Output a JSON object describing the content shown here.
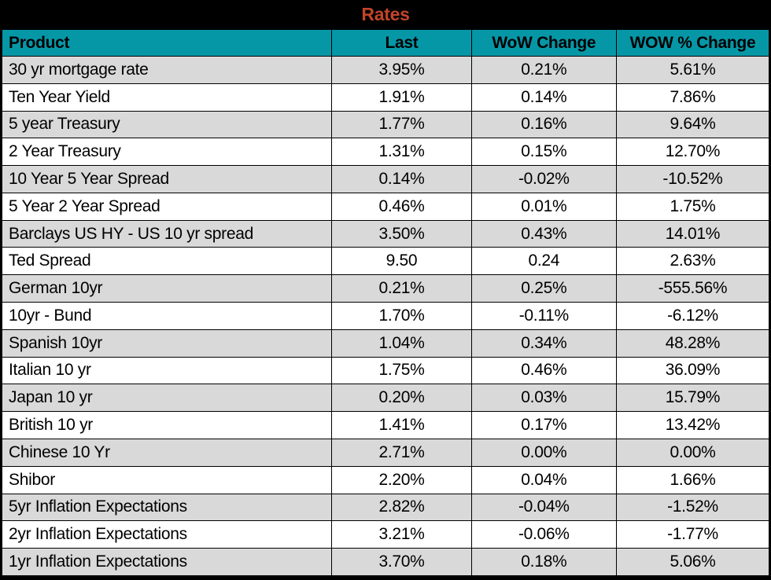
{
  "title": "Rates",
  "colors": {
    "title_bg": "#000000",
    "title_color": "#c2452a",
    "header_bg": "#0697a7",
    "stripe": "#d9d9d9",
    "border": "#000000"
  },
  "chart_data": {
    "type": "table",
    "title": "Rates",
    "columns": [
      "Product",
      "Last",
      "WoW Change",
      "WOW % Change"
    ],
    "rows": [
      [
        "30 yr mortgage rate",
        "3.95%",
        "0.21%",
        "5.61%"
      ],
      [
        "Ten Year Yield",
        "1.91%",
        "0.14%",
        "7.86%"
      ],
      [
        "5 year Treasury",
        "1.77%",
        "0.16%",
        "9.64%"
      ],
      [
        "2 Year Treasury",
        "1.31%",
        "0.15%",
        "12.70%"
      ],
      [
        "10 Year 5 Year Spread",
        "0.14%",
        "-0.02%",
        "-10.52%"
      ],
      [
        "5 Year 2 Year Spread",
        "0.46%",
        "0.01%",
        "1.75%"
      ],
      [
        "Barclays US HY - US 10 yr spread",
        "3.50%",
        "0.43%",
        "14.01%"
      ],
      [
        "Ted Spread",
        "9.50",
        "0.24",
        "2.63%"
      ],
      [
        "German 10yr",
        "0.21%",
        "0.25%",
        "-555.56%"
      ],
      [
        "10yr - Bund",
        "1.70%",
        "-0.11%",
        "-6.12%"
      ],
      [
        "Spanish 10yr",
        "1.04%",
        "0.34%",
        "48.28%"
      ],
      [
        "Italian 10 yr",
        "1.75%",
        "0.46%",
        "36.09%"
      ],
      [
        "Japan 10 yr",
        "0.20%",
        "0.03%",
        "15.79%"
      ],
      [
        "British 10 yr",
        "1.41%",
        "0.17%",
        "13.42%"
      ],
      [
        "Chinese 10 Yr",
        "2.71%",
        "0.00%",
        "0.00%"
      ],
      [
        "Shibor",
        "2.20%",
        "0.04%",
        "1.66%"
      ],
      [
        "5yr Inflation Expectations",
        "2.82%",
        "-0.04%",
        "-1.52%"
      ],
      [
        "2yr Inflation Expectations",
        "3.21%",
        "-0.06%",
        "-1.77%"
      ],
      [
        "1yr Inflation Expectations",
        "3.70%",
        "0.18%",
        "5.06%"
      ]
    ],
    "layout": {
      "striped_rows": true,
      "first_data_row_shaded": true,
      "value_columns_align": "center",
      "product_column_align": "left"
    }
  }
}
